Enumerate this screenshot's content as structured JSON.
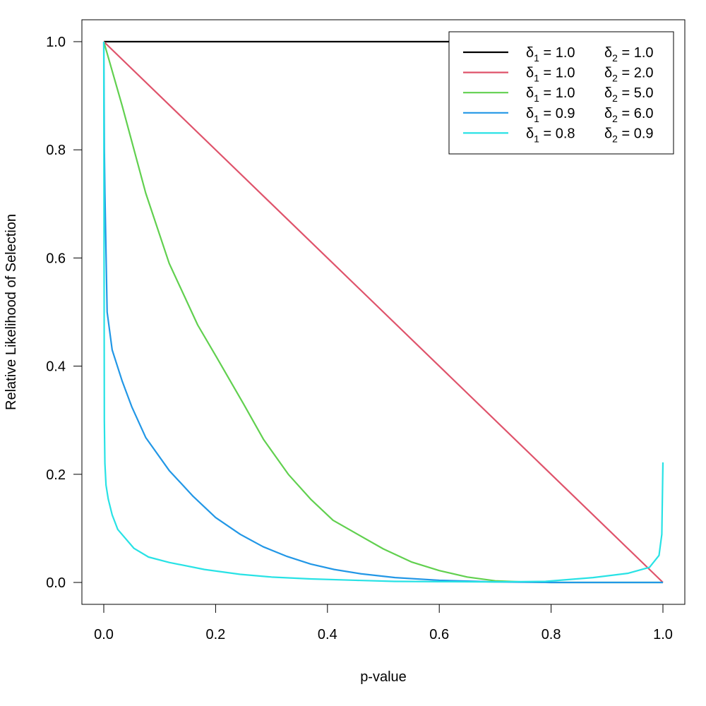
{
  "chart_data": {
    "type": "line",
    "title": "",
    "xlabel": "p-value",
    "ylabel": "Relative Likelihood of Selection",
    "xlim": [
      0,
      1
    ],
    "ylim": [
      0,
      1
    ],
    "xticks": [
      "0.0",
      "0.2",
      "0.4",
      "0.6",
      "0.8",
      "1.0"
    ],
    "yticks": [
      "0.0",
      "0.2",
      "0.4",
      "0.6",
      "0.8",
      "1.0"
    ],
    "grid": false,
    "legend_position": "top-right",
    "legend_symbol": "δ",
    "series": [
      {
        "name": "δ1 = 1.0  δ2 = 1.0",
        "delta1": "1.0",
        "delta2": "1.0",
        "color": "#000000",
        "x": [
          0,
          1
        ],
        "y": [
          1,
          1
        ]
      },
      {
        "name": "δ1 = 1.0  δ2 = 2.0",
        "delta1": "1.0",
        "delta2": "2.0",
        "color": "#DF536B",
        "x": [
          0,
          1
        ],
        "y": [
          1,
          0
        ]
      },
      {
        "name": "δ1 = 1.0  δ2 = 5.0",
        "delta1": "1.0",
        "delta2": "5.0",
        "color": "#61D04F",
        "x": [
          0,
          0.033,
          0.075,
          0.117,
          0.168,
          0.202,
          0.25,
          0.286,
          0.33,
          0.37,
          0.41,
          0.454,
          0.5,
          0.55,
          0.6,
          0.65,
          0.7,
          0.75,
          0.8,
          0.9,
          1.0
        ],
        "y": [
          1,
          0.881,
          0.72,
          0.59,
          0.476,
          0.416,
          0.33,
          0.264,
          0.2,
          0.154,
          0.115,
          0.089,
          0.062,
          0.038,
          0.022,
          0.01,
          0.003,
          0.001,
          0,
          0,
          0
        ]
      },
      {
        "name": "δ1 = 0.9  δ2 = 6.0",
        "delta1": "0.9",
        "delta2": "6.0",
        "color": "#2297E6",
        "x": [
          0,
          0.001,
          0.002,
          0.006,
          0.015,
          0.033,
          0.05,
          0.075,
          0.117,
          0.16,
          0.2,
          0.244,
          0.285,
          0.328,
          0.37,
          0.412,
          0.46,
          0.521,
          0.6,
          0.7,
          0.8,
          0.9,
          1.0
        ],
        "y": [
          1,
          0.8,
          0.72,
          0.5,
          0.43,
          0.372,
          0.325,
          0.268,
          0.207,
          0.159,
          0.12,
          0.089,
          0.066,
          0.048,
          0.034,
          0.024,
          0.016,
          0.009,
          0.004,
          0.001,
          0,
          0,
          0
        ]
      },
      {
        "name": "δ1 = 0.8  δ2 = 0.9",
        "delta1": "0.8",
        "delta2": "0.9",
        "color": "#28E2E5",
        "x": [
          0,
          0.0005,
          0.001,
          0.002,
          0.004,
          0.008,
          0.015,
          0.025,
          0.054,
          0.08,
          0.117,
          0.18,
          0.244,
          0.3,
          0.37,
          0.45,
          0.52,
          0.6,
          0.7,
          0.79,
          0.875,
          0.938,
          0.976,
          0.993,
          0.998,
          1.0
        ],
        "y": [
          1,
          0.6,
          0.3,
          0.22,
          0.18,
          0.154,
          0.125,
          0.098,
          0.063,
          0.047,
          0.037,
          0.024,
          0.015,
          0.01,
          0.0065,
          0.004,
          0.002,
          0.0015,
          0.001,
          0.002,
          0.009,
          0.017,
          0.028,
          0.05,
          0.089,
          0.222
        ]
      }
    ]
  }
}
